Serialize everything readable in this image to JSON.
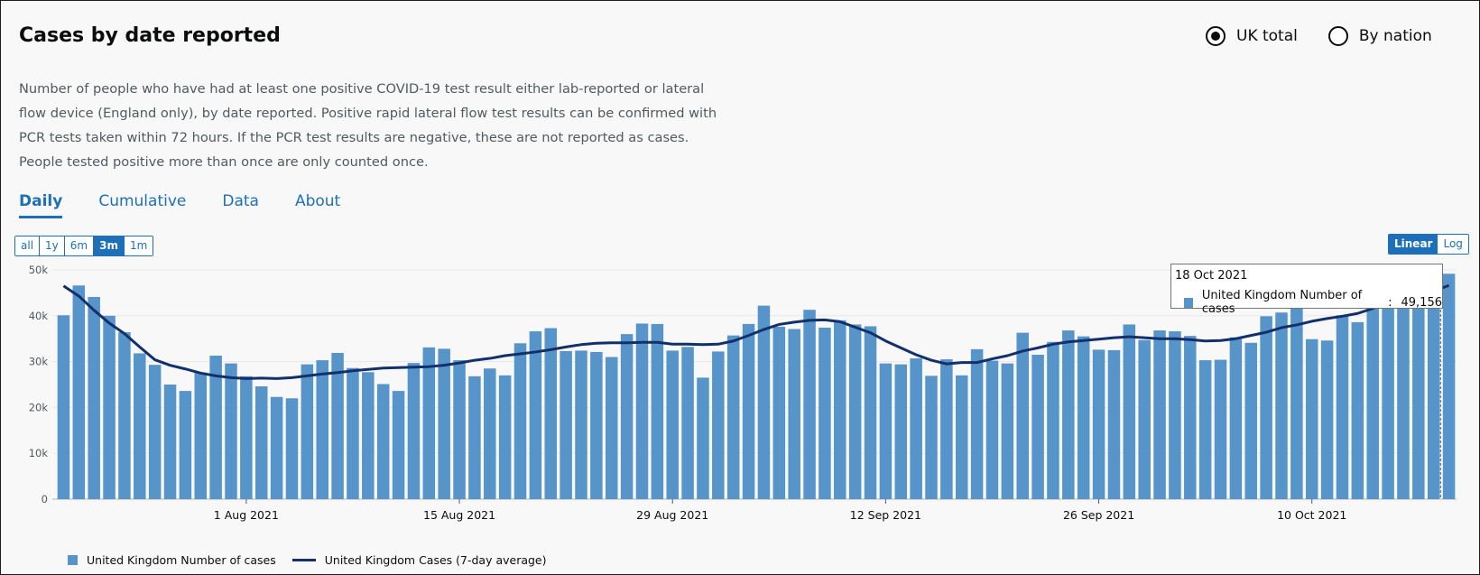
{
  "header": {
    "title": "Cases by date reported",
    "description": "Number of people who have had at least one positive COVID-19 test result either lab-reported or lateral flow device (England only), by date reported. Positive rapid lateral flow test results can be confirmed with PCR tests taken within 72 hours. If the PCR test results are negative, these are not reported as cases. People tested positive more than once are only counted once."
  },
  "radios": [
    {
      "label": "UK total",
      "checked": true
    },
    {
      "label": "By nation",
      "checked": false
    }
  ],
  "tabs": [
    {
      "label": "Daily",
      "active": true
    },
    {
      "label": "Cumulative",
      "active": false
    },
    {
      "label": "Data",
      "active": false
    },
    {
      "label": "About",
      "active": false
    }
  ],
  "range_buttons": [
    {
      "label": "all",
      "selected": false
    },
    {
      "label": "1y",
      "selected": false
    },
    {
      "label": "6m",
      "selected": false
    },
    {
      "label": "3m",
      "selected": true
    },
    {
      "label": "1m",
      "selected": false
    }
  ],
  "scale_buttons": [
    {
      "label": "Linear",
      "selected": true
    },
    {
      "label": "Log",
      "selected": false
    }
  ],
  "tooltip": {
    "date": "18 Oct 2021",
    "series": "United Kingdom Number of cases",
    "value": "49,156"
  },
  "colors": {
    "bar": "#5694ca",
    "avg_line": "#12306b",
    "accent": "#1d70b8"
  },
  "chart_data": {
    "type": "bar",
    "title": "Cases by date reported",
    "ylim": [
      0,
      50000
    ],
    "ytick_labels": [
      "0",
      "10k",
      "20k",
      "30k",
      "40k",
      "50k"
    ],
    "ytick_values": [
      0,
      10000,
      20000,
      30000,
      40000,
      50000
    ],
    "start_date": "2021-07-20",
    "xtick_labels": [
      {
        "label": "1 Aug 2021",
        "index": 12
      },
      {
        "label": "15 Aug 2021",
        "index": 26
      },
      {
        "label": "29 Aug 2021",
        "index": 40
      },
      {
        "label": "12 Sep 2021",
        "index": 54
      },
      {
        "label": "26 Sep 2021",
        "index": 68
      },
      {
        "label": "10 Oct 2021",
        "index": 82
      }
    ],
    "series": [
      {
        "name": "United Kingdom Number of cases",
        "type": "bar",
        "values": [
          40100,
          46600,
          44100,
          40000,
          36400,
          31800,
          29300,
          25000,
          23600,
          27600,
          31300,
          29600,
          26800,
          24600,
          22300,
          22000,
          29400,
          30300,
          31900,
          28600,
          27700,
          25100,
          23600,
          29700,
          33100,
          32800,
          30300,
          26800,
          28500,
          27000,
          34000,
          36600,
          37300,
          32300,
          32400,
          32100,
          31000,
          36000,
          38300,
          38200,
          32400,
          33200,
          26500,
          32200,
          35700,
          38200,
          42200,
          37600,
          37100,
          41300,
          37400,
          39000,
          38100,
          37700,
          29600,
          29400,
          30700,
          26900,
          30500,
          27000,
          32700,
          30200,
          29600,
          36300,
          31500,
          34300,
          36800,
          35500,
          32600,
          32500,
          38100,
          34700,
          36800,
          36600,
          35600,
          30300,
          30400,
          35300,
          34100,
          39900,
          40700,
          43200,
          34900,
          34600,
          40100,
          38600,
          43400,
          44100,
          42600,
          43100,
          46200,
          49156
        ]
      },
      {
        "name": "United Kingdom Cases (7-day average)",
        "type": "line",
        "values": [
          46500,
          44300,
          41200,
          38400,
          36100,
          33200,
          30400,
          29200,
          28400,
          27500,
          26900,
          26500,
          26300,
          26400,
          26300,
          26500,
          26900,
          27300,
          27600,
          28000,
          28300,
          28600,
          28700,
          28800,
          28900,
          29200,
          29700,
          30300,
          30700,
          31300,
          31700,
          32100,
          32600,
          33200,
          33700,
          34000,
          34100,
          34100,
          34200,
          34200,
          33800,
          33800,
          33700,
          33800,
          34500,
          35700,
          37000,
          38100,
          38600,
          39000,
          39100,
          38700,
          37500,
          36300,
          34500,
          33000,
          31500,
          30300,
          29500,
          29800,
          29800,
          30600,
          31300,
          32300,
          33000,
          33800,
          34300,
          34600,
          34900,
          35200,
          35400,
          35200,
          35000,
          35000,
          34800,
          34500,
          34600,
          35000,
          35700,
          36400,
          37400,
          38000,
          38800,
          39400,
          39900,
          40500,
          41600,
          42900,
          44000,
          44700,
          45400,
          46600
        ]
      }
    ],
    "legend": [
      {
        "label": "United Kingdom Number of cases",
        "kind": "bar"
      },
      {
        "label": "United Kingdom Cases (7-day average)",
        "kind": "line"
      }
    ],
    "legend_position": "bottom-left"
  }
}
